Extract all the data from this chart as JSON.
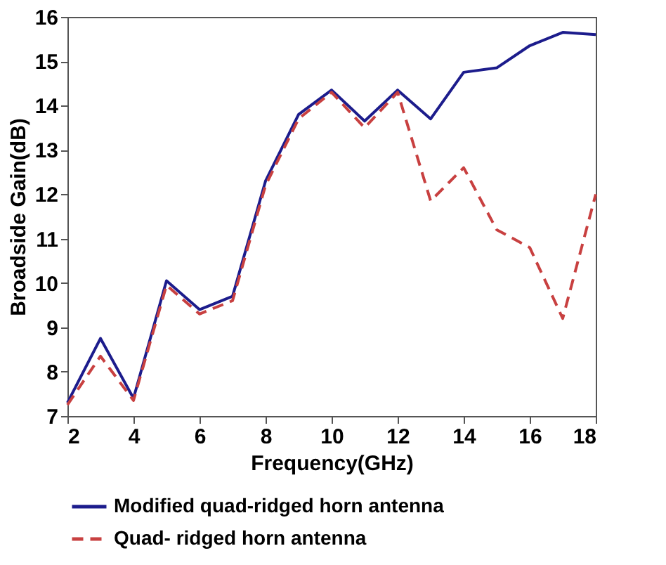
{
  "chart_data": {
    "type": "line",
    "xlabel": "Frequency(GHz)",
    "ylabel": "Broadside Gain(dB)",
    "x": [
      2,
      3,
      4,
      5,
      6,
      7,
      8,
      9,
      10,
      11,
      12,
      13,
      14,
      15,
      16,
      17,
      18
    ],
    "xlim": [
      2,
      18
    ],
    "xticks": [
      2,
      4,
      6,
      8,
      10,
      12,
      14,
      16,
      18
    ],
    "ylim": [
      7,
      16
    ],
    "yticks": [
      7,
      8,
      9,
      10,
      11,
      12,
      13,
      14,
      15,
      16
    ],
    "grid": false,
    "legend": "bottom",
    "marker": "none",
    "series": [
      {
        "name": "Modified quad-ridged horn antenna",
        "color": "#1c1c8c",
        "line_style": "solid",
        "values": [
          7.3,
          8.75,
          7.4,
          10.05,
          9.4,
          9.7,
          12.3,
          13.8,
          14.35,
          13.65,
          14.35,
          13.7,
          14.75,
          14.85,
          15.35,
          15.65,
          15.6
        ]
      },
      {
        "name": "Quad- ridged horn antenna",
        "color": "#c84040",
        "line_style": "dashed",
        "values": [
          7.25,
          8.35,
          7.35,
          9.95,
          9.3,
          9.6,
          12.2,
          13.7,
          14.3,
          13.5,
          14.3,
          11.85,
          12.6,
          11.2,
          10.8,
          9.2,
          12.0
        ]
      }
    ]
  }
}
